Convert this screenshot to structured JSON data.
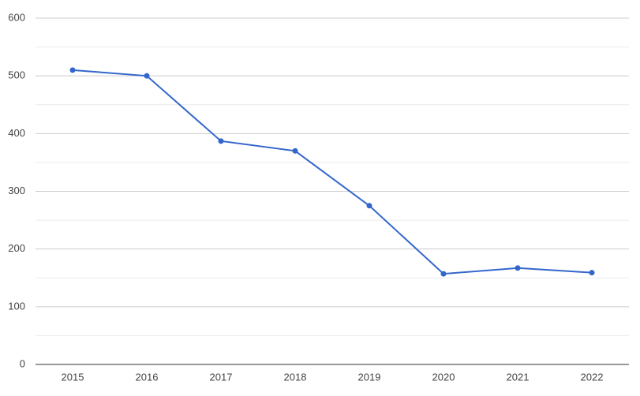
{
  "chart_data": {
    "type": "line",
    "categories": [
      "2015",
      "2016",
      "2017",
      "2018",
      "2019",
      "2020",
      "2021",
      "2022"
    ],
    "series": [
      {
        "color": "#3366cc",
        "values": [
          510,
          500,
          387,
          370,
          275,
          157,
          167,
          159
        ]
      }
    ],
    "ylim": [
      0,
      600
    ],
    "yticks": [
      0,
      100,
      200,
      300,
      400,
      500,
      600
    ],
    "minor_yticks": [
      50,
      150,
      250,
      350,
      450,
      550
    ],
    "grid": true
  }
}
